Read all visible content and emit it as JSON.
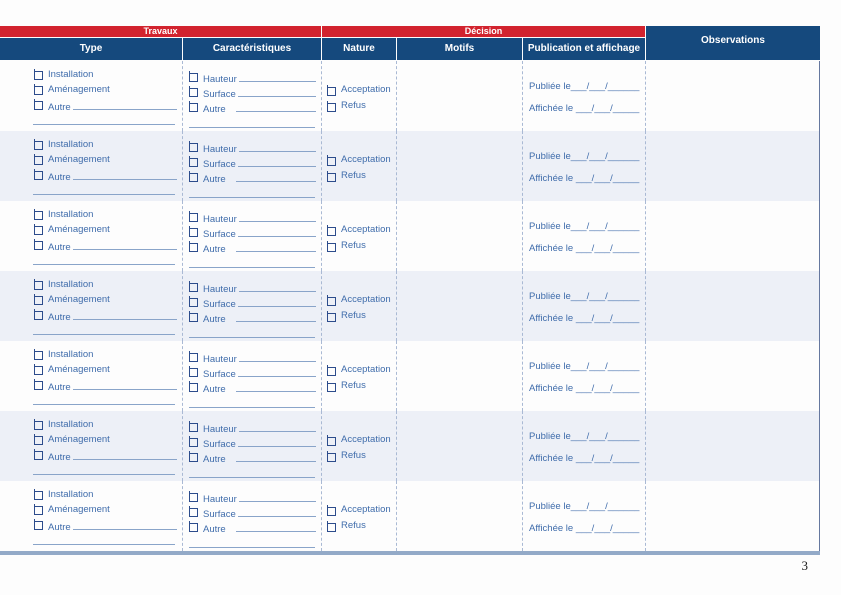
{
  "page": {
    "number": "3"
  },
  "table": {
    "groups": {
      "travaux": "Travaux",
      "decision": "Décision"
    },
    "observations_label": "Observations",
    "columns": {
      "type": "Type",
      "caracteristiques": "Caractéristiques",
      "nature": "Nature",
      "motifs": "Motifs",
      "publication": "Publication et affichage"
    },
    "row_count": 7,
    "row_labels": {
      "installation": "Installation",
      "amenagement": "Aménagement",
      "autre_type": "Autre",
      "hauteur": "Hauteur",
      "surface": "Surface",
      "autre_carac": "Autre",
      "acceptation": "Acceptation",
      "refus": "Refus",
      "publiee": "Publiée le___/___/______",
      "affichee": "Affichée le ___/___/_____"
    }
  },
  "colors": {
    "band_red": "#d2232e",
    "header_blue": "#15497d",
    "label_blue": "#3f6cab",
    "row_alt": "#edf0f7",
    "rule_blue": "#89a4c9",
    "bottom_bar": "#93aac8"
  }
}
